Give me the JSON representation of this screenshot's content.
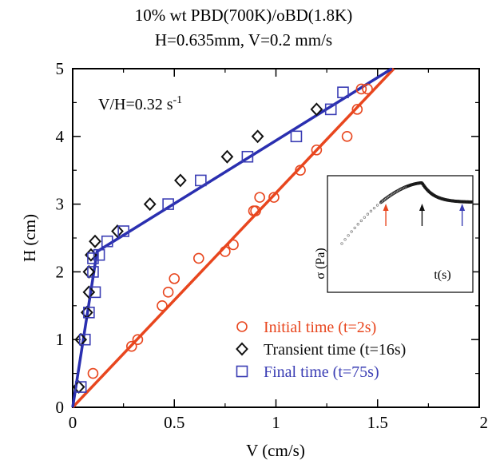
{
  "chart_data": [
    {
      "type": "scatter",
      "title": "10% wt PBD(700K)/oBD(1.8K)",
      "subtitle": "H=0.635mm, V=0.2 mm/s",
      "xlabel": "V (cm/s)",
      "ylabel": "H (cm)",
      "xlim": [
        0,
        2
      ],
      "ylim": [
        0,
        5
      ],
      "x_ticks": [
        "0",
        "0.5",
        "1",
        "1.5",
        "2"
      ],
      "y_ticks": [
        "0",
        "1",
        "2",
        "3",
        "4",
        "5"
      ],
      "grid": false,
      "legend_position": "bottom-right",
      "annotation": {
        "text": "V/H=0.32 s",
        "superscript": "-1"
      },
      "series": [
        {
          "name": "Initial time (t=2s)",
          "marker": "circle",
          "color": "#e8461e",
          "points": [
            [
              0.1,
              0.5
            ],
            [
              0.29,
              0.9
            ],
            [
              0.32,
              1.0
            ],
            [
              0.44,
              1.5
            ],
            [
              0.47,
              1.7
            ],
            [
              0.5,
              1.9
            ],
            [
              0.62,
              2.2
            ],
            [
              0.75,
              2.3
            ],
            [
              0.79,
              2.4
            ],
            [
              0.9,
              2.9
            ],
            [
              0.89,
              2.9
            ],
            [
              0.92,
              3.1
            ],
            [
              0.99,
              3.1
            ],
            [
              1.12,
              3.5
            ],
            [
              1.2,
              3.8
            ],
            [
              1.35,
              4.0
            ],
            [
              1.4,
              4.4
            ],
            [
              1.42,
              4.7
            ],
            [
              1.45,
              4.7
            ]
          ]
        },
        {
          "name": "Transient time (t=16s)",
          "marker": "diamond",
          "color": "#111111",
          "points": [
            [
              0.03,
              0.3
            ],
            [
              0.04,
              1.0
            ],
            [
              0.07,
              1.4
            ],
            [
              0.08,
              1.7
            ],
            [
              0.08,
              2.0
            ],
            [
              0.09,
              2.25
            ],
            [
              0.11,
              2.45
            ],
            [
              0.22,
              2.6
            ],
            [
              0.38,
              3.0
            ],
            [
              0.53,
              3.35
            ],
            [
              0.76,
              3.7
            ],
            [
              0.91,
              4.0
            ],
            [
              1.2,
              4.4
            ]
          ]
        },
        {
          "name": "Final time (t=75s)",
          "marker": "square",
          "color": "#3a3db4",
          "points": [
            [
              0.04,
              0.3
            ],
            [
              0.06,
              1.0
            ],
            [
              0.08,
              1.4
            ],
            [
              0.11,
              1.7
            ],
            [
              0.1,
              2.0
            ],
            [
              0.1,
              2.2
            ],
            [
              0.13,
              2.25
            ],
            [
              0.17,
              2.45
            ],
            [
              0.25,
              2.6
            ],
            [
              0.47,
              3.0
            ],
            [
              0.63,
              3.35
            ],
            [
              0.86,
              3.7
            ],
            [
              1.1,
              4.0
            ],
            [
              1.27,
              4.4
            ],
            [
              1.33,
              4.65
            ]
          ]
        }
      ],
      "fit_lines": [
        {
          "color": "#e8461e",
          "points": [
            [
              0,
              0
            ],
            [
              1.58,
              5.0
            ]
          ]
        },
        {
          "color": "#2a2fb0",
          "points": [
            [
              0,
              0
            ],
            [
              0.12,
              2.3
            ],
            [
              1.57,
              5.0
            ]
          ]
        }
      ]
    },
    {
      "type": "scatter",
      "xlabel": "t(s)",
      "ylabel": "σ (Pa)",
      "grid": false,
      "markers": [
        {
          "color": "#e8461e",
          "at": 0.34
        },
        {
          "color": "#111111",
          "at": 0.62
        },
        {
          "color": "#3a3db4",
          "at": 0.93
        }
      ]
    }
  ]
}
